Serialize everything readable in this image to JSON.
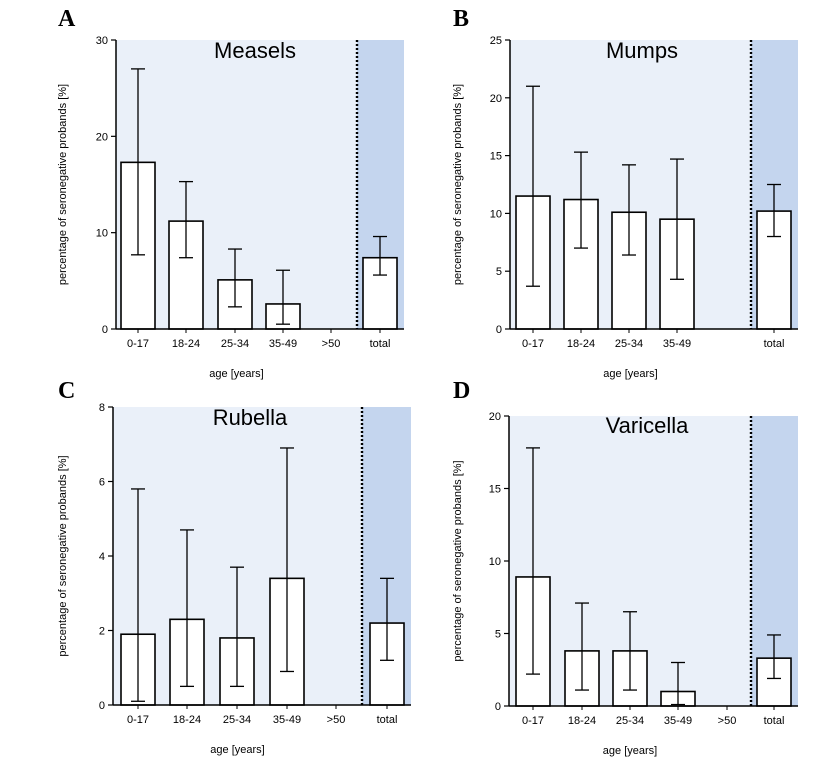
{
  "chart_data": [
    {
      "panel": "A",
      "type": "bar",
      "title": "Measels",
      "xlabel": "age [years]",
      "ylabel": "percentage of seronegative probands [%]",
      "ylim": [
        0,
        30
      ],
      "yticks": [
        0,
        10,
        20,
        30
      ],
      "categories": [
        "0-17",
        "18-24",
        "25-34",
        "35-49",
        ">50",
        "total"
      ],
      "values": [
        17.3,
        11.2,
        5.1,
        2.6,
        null,
        7.4
      ],
      "error_low": [
        7.7,
        7.4,
        2.3,
        0.5,
        null,
        5.6
      ],
      "error_high": [
        27.0,
        15.3,
        8.3,
        6.1,
        null,
        9.6
      ]
    },
    {
      "panel": "B",
      "type": "bar",
      "title": "Mumps",
      "xlabel": "age [years]",
      "ylabel": "percentage of seronegative probands [%]",
      "ylim": [
        0,
        25
      ],
      "yticks": [
        0,
        5,
        10,
        15,
        20,
        25
      ],
      "categories": [
        "0-17",
        "18-24",
        "25-34",
        "35-49",
        "total"
      ],
      "values": [
        11.5,
        11.2,
        10.1,
        9.5,
        10.2
      ],
      "error_low": [
        3.7,
        7.0,
        6.4,
        4.3,
        8.0
      ],
      "error_high": [
        21.0,
        15.3,
        14.2,
        14.7,
        12.5
      ]
    },
    {
      "panel": "C",
      "type": "bar",
      "title": "Rubella",
      "xlabel": "age [years]",
      "ylabel": "percentage of seronegative probands [%]",
      "ylim": [
        0,
        8
      ],
      "yticks": [
        0,
        2,
        4,
        6,
        8
      ],
      "categories": [
        "0-17",
        "18-24",
        "25-34",
        "35-49",
        ">50",
        "total"
      ],
      "values": [
        1.9,
        2.3,
        1.8,
        3.4,
        null,
        2.2
      ],
      "error_low": [
        0.1,
        0.5,
        0.5,
        0.9,
        null,
        1.2
      ],
      "error_high": [
        5.8,
        4.7,
        3.7,
        6.9,
        null,
        3.4
      ]
    },
    {
      "panel": "D",
      "type": "bar",
      "title": "Varicella",
      "xlabel": "age [years]",
      "ylabel": "percentage of seronegative probands [%]",
      "ylim": [
        0,
        20
      ],
      "yticks": [
        0,
        5,
        10,
        15,
        20
      ],
      "categories": [
        "0-17",
        "18-24",
        "25-34",
        "35-49",
        ">50",
        "total"
      ],
      "values": [
        8.9,
        3.8,
        3.8,
        1.0,
        null,
        3.3
      ],
      "error_low": [
        2.2,
        1.1,
        1.1,
        0.1,
        null,
        1.9
      ],
      "error_high": [
        17.8,
        7.1,
        6.5,
        3.0,
        null,
        4.9
      ]
    }
  ],
  "colors": {
    "plot_bg": "#eaf0f9",
    "total_bg": "#c4d5ee",
    "bar_fill": "#ffffff",
    "ink": "#000000"
  }
}
